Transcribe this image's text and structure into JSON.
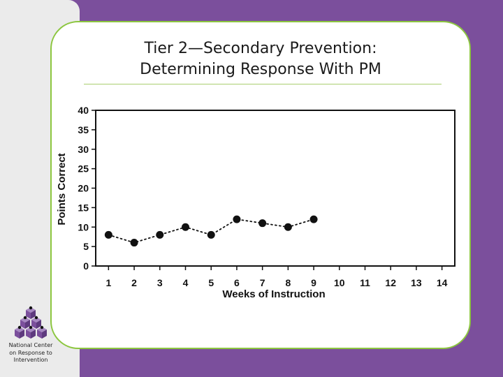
{
  "slide": {
    "title_line1": "Tier 2—Secondary Prevention:",
    "title_line2": "Determining Response With PM"
  },
  "logo": {
    "line1": "National Center",
    "line2": "on Response to",
    "line3": "Intervention",
    "icon": "cube-pyramid-logo-icon"
  },
  "colors": {
    "purple_background": "#7b4f9c",
    "green_border": "#8cc63f",
    "logo_cube": "#7b4f9c"
  },
  "chart_data": {
    "type": "line",
    "title": "",
    "xlabel": "Weeks of Instruction",
    "ylabel": "Points Correct",
    "categories": [
      "1",
      "2",
      "3",
      "4",
      "5",
      "6",
      "7",
      "8",
      "9",
      "10",
      "11",
      "12",
      "13",
      "14"
    ],
    "x": [
      1,
      2,
      3,
      4,
      5,
      6,
      7,
      8,
      9
    ],
    "values": [
      8,
      6,
      8,
      10,
      8,
      12,
      11,
      10,
      12
    ],
    "yticks": [
      0,
      5,
      10,
      15,
      20,
      25,
      30,
      35,
      40
    ],
    "ylim": [
      0,
      40
    ],
    "xlim": [
      0.5,
      14.5
    ],
    "grid": false,
    "line_style": "dotted",
    "marker": "circle"
  }
}
